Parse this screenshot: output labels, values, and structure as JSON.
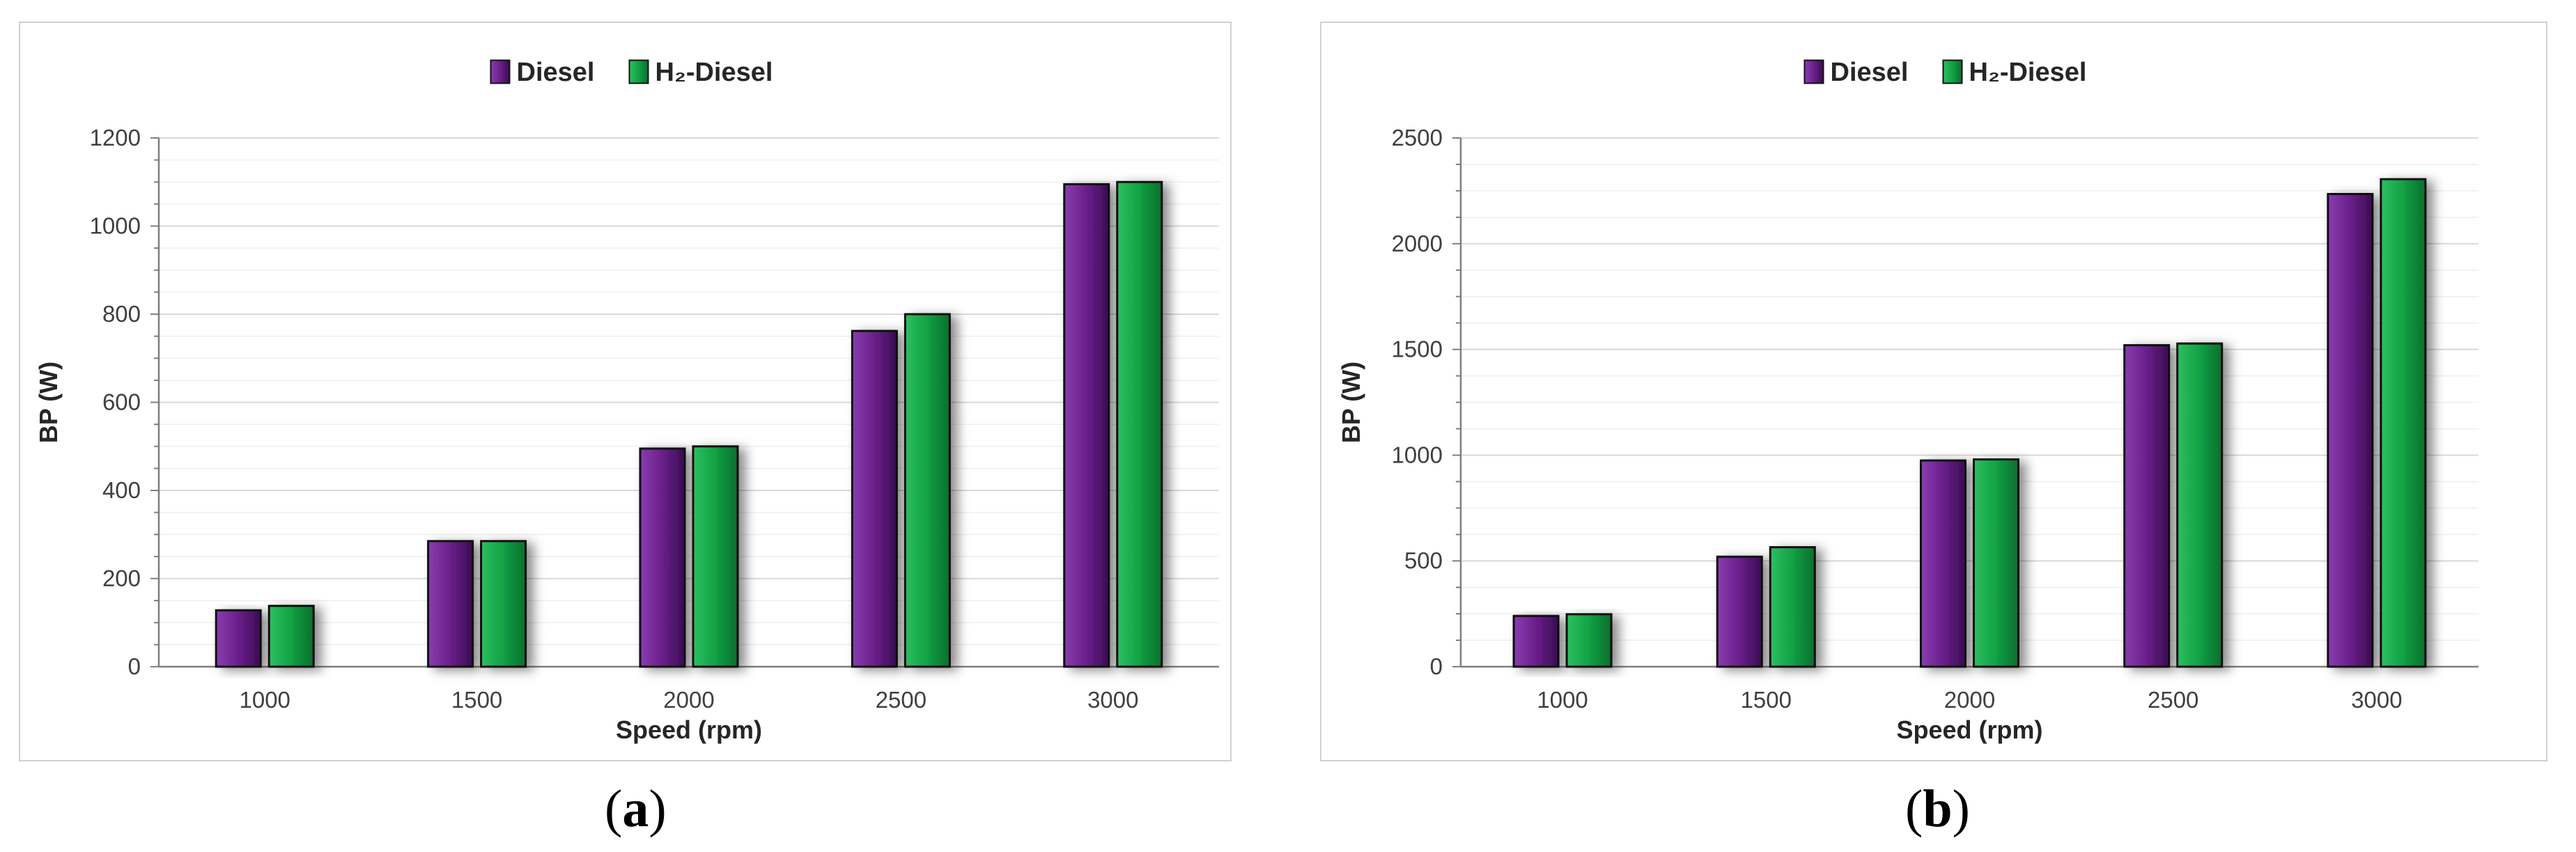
{
  "colors": {
    "diesel": "#6a1f8a",
    "h2": "#12a144",
    "grid": "#dcdcdc",
    "axis": "#7f7f7f"
  },
  "chart_data": [
    {
      "type": "bar",
      "panel_label": "a",
      "categories": [
        "1000",
        "1500",
        "2000",
        "2500",
        "3000"
      ],
      "series": [
        {
          "name": "Diesel",
          "values": [
            128,
            285,
            495,
            762,
            1095
          ]
        },
        {
          "name": "H₂-Diesel",
          "values": [
            138,
            285,
            500,
            800,
            1100
          ]
        }
      ],
      "xlabel": "Speed (rpm)",
      "ylabel": "BP (W)",
      "ylim": [
        0,
        1200
      ],
      "yticks": [
        0,
        200,
        400,
        600,
        800,
        1000,
        1200
      ],
      "grid": true,
      "legend": "top-center"
    },
    {
      "type": "bar",
      "panel_label": "b",
      "categories": [
        "1000",
        "1500",
        "2000",
        "2500",
        "3000"
      ],
      "series": [
        {
          "name": "Diesel",
          "values": [
            240,
            520,
            975,
            1520,
            2235
          ]
        },
        {
          "name": "H₂-Diesel",
          "values": [
            248,
            565,
            980,
            1528,
            2305
          ]
        }
      ],
      "xlabel": "Speed (rpm)",
      "ylabel": "BP (W)",
      "ylim": [
        0,
        2500
      ],
      "yticks": [
        0,
        500,
        1000,
        1500,
        2000,
        2500
      ],
      "grid": true,
      "legend": "top-center"
    }
  ]
}
